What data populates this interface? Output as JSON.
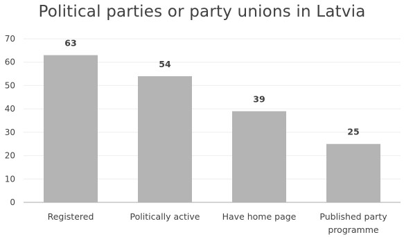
{
  "chart_data": {
    "type": "bar",
    "title": "Political parties or party unions in Latvia",
    "categories": [
      "Registered",
      "Politically active",
      "Have home page",
      "Published party programme"
    ],
    "category_lines": [
      [
        "Registered"
      ],
      [
        "Politically active"
      ],
      [
        "Have home page"
      ],
      [
        "Published party",
        "programme"
      ]
    ],
    "values": [
      63,
      54,
      39,
      25
    ],
    "data_labels": [
      "63",
      "54",
      "39",
      "25"
    ],
    "ylim": [
      0,
      70
    ],
    "yticks": [
      0,
      10,
      20,
      30,
      40,
      50,
      60,
      70
    ],
    "xlabel": "",
    "ylabel": "",
    "grid": true,
    "legend": "none",
    "bar_color": "#b4b4b4",
    "grid_color": "#eeeeee",
    "axis_color": "#aaaaaa",
    "text_color": "#404040"
  }
}
